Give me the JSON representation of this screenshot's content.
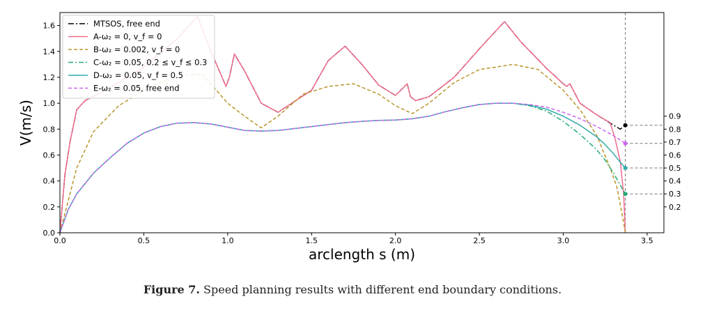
{
  "caption": {
    "label": "Figure 7.",
    "text": " Speed planning results with different end boundary conditions."
  },
  "chart_data": {
    "type": "line",
    "xlabel": "arclength s (m)",
    "ylabel": "V(m/s)",
    "xlim": [
      0.0,
      3.6
    ],
    "ylim": [
      0.0,
      1.7
    ],
    "xticks": [
      "0.0",
      "0.5",
      "1.0",
      "1.5",
      "2.0",
      "2.5",
      "3.0",
      "3.5"
    ],
    "yticks": [
      "0.0",
      "0.2",
      "0.4",
      "0.6",
      "0.8",
      "1.0",
      "1.2",
      "1.4",
      "1.6"
    ],
    "right_ticks": [
      "0.2",
      "0.3",
      "0.4",
      "0.5",
      "0.6",
      "0.7",
      "0.8",
      "0.9"
    ],
    "end_s": 3.37,
    "legend_position": "top-left",
    "end_markers": [
      {
        "y": 0.83,
        "color": "#000000"
      },
      {
        "y": 0.69,
        "color": "#cc66ee"
      },
      {
        "y": 0.5,
        "color": "#33aaaa"
      },
      {
        "y": 0.3,
        "color": "#22aa77"
      }
    ],
    "series": [
      {
        "name": "MTSOS, free end",
        "color": "#000000",
        "dash": "8,3,2,3",
        "x": [
          0,
          0.03,
          0.06,
          0.1,
          0.15,
          0.3,
          0.5,
          0.7,
          0.82,
          0.9,
          0.95,
          0.99,
          1.01,
          1.04,
          1.1,
          1.2,
          1.3,
          1.5,
          1.6,
          1.7,
          1.8,
          1.9,
          2.0,
          2.07,
          2.09,
          2.12,
          2.2,
          2.35,
          2.5,
          2.65,
          2.75,
          2.9,
          3.0,
          3.02,
          3.04,
          3.1,
          3.2,
          3.3,
          3.34,
          3.37
        ],
        "y": [
          0,
          0.45,
          0.7,
          0.95,
          1.02,
          1.12,
          1.28,
          1.5,
          1.67,
          1.4,
          1.25,
          1.13,
          1.2,
          1.38,
          1.25,
          1.0,
          0.93,
          1.1,
          1.33,
          1.44,
          1.3,
          1.14,
          1.06,
          1.15,
          1.05,
          1.02,
          1.05,
          1.2,
          1.42,
          1.63,
          1.47,
          1.27,
          1.15,
          1.13,
          1.15,
          1.0,
          0.91,
          0.83,
          0.8,
          0.83
        ]
      },
      {
        "name": "A-ω₂ = 0, v_f = 0",
        "color": "#f06b8c",
        "dash": "",
        "x": [
          0,
          0.03,
          0.06,
          0.1,
          0.15,
          0.3,
          0.5,
          0.7,
          0.82,
          0.9,
          0.95,
          0.99,
          1.01,
          1.04,
          1.1,
          1.2,
          1.3,
          1.5,
          1.6,
          1.7,
          1.8,
          1.9,
          2.0,
          2.07,
          2.09,
          2.12,
          2.2,
          2.35,
          2.5,
          2.65,
          2.75,
          2.9,
          3.0,
          3.02,
          3.04,
          3.1,
          3.2,
          3.28,
          3.31,
          3.34,
          3.36,
          3.37
        ],
        "y": [
          0,
          0.45,
          0.7,
          0.95,
          1.02,
          1.12,
          1.28,
          1.5,
          1.67,
          1.4,
          1.25,
          1.13,
          1.2,
          1.38,
          1.25,
          1.0,
          0.93,
          1.1,
          1.33,
          1.44,
          1.3,
          1.14,
          1.06,
          1.15,
          1.05,
          1.02,
          1.05,
          1.2,
          1.42,
          1.63,
          1.47,
          1.27,
          1.15,
          1.13,
          1.15,
          1.0,
          0.91,
          0.85,
          0.72,
          0.55,
          0.3,
          0.0
        ]
      },
      {
        "name": "B-ω₂ = 0.002, v_f = 0",
        "color": "#b8952a",
        "dash": "5,3",
        "x": [
          0,
          0.1,
          0.2,
          0.35,
          0.5,
          0.7,
          0.85,
          1.0,
          1.1,
          1.2,
          1.3,
          1.45,
          1.6,
          1.75,
          1.9,
          2.0,
          2.1,
          2.2,
          2.35,
          2.5,
          2.7,
          2.85,
          3.0,
          3.1,
          3.2,
          3.28,
          3.32,
          3.35,
          3.37
        ],
        "y": [
          0,
          0.5,
          0.78,
          0.98,
          1.1,
          1.22,
          1.22,
          1.0,
          0.9,
          0.81,
          0.9,
          1.07,
          1.13,
          1.15,
          1.07,
          0.98,
          0.92,
          1.0,
          1.16,
          1.26,
          1.3,
          1.26,
          1.1,
          0.95,
          0.75,
          0.5,
          0.35,
          0.15,
          0.0
        ]
      },
      {
        "name": "C-ω₂ = 0.05, 0.2 ≤ v_f ≤ 0.3",
        "color": "#22aa77",
        "dash": "7,3,2,3",
        "x": [
          0,
          0.05,
          0.1,
          0.2,
          0.3,
          0.4,
          0.5,
          0.6,
          0.7,
          0.8,
          0.9,
          1.0,
          1.1,
          1.2,
          1.3,
          1.4,
          1.5,
          1.6,
          1.7,
          1.8,
          1.9,
          2.0,
          2.1,
          2.2,
          2.3,
          2.4,
          2.5,
          2.6,
          2.7,
          2.8,
          2.9,
          3.0,
          3.1,
          3.2,
          3.25,
          3.3,
          3.33,
          3.37
        ],
        "y": [
          0,
          0.18,
          0.3,
          0.46,
          0.58,
          0.69,
          0.77,
          0.82,
          0.846,
          0.85,
          0.84,
          0.815,
          0.79,
          0.785,
          0.79,
          0.805,
          0.82,
          0.835,
          0.85,
          0.86,
          0.867,
          0.87,
          0.88,
          0.9,
          0.935,
          0.965,
          0.99,
          1.0,
          1.0,
          0.98,
          0.94,
          0.86,
          0.76,
          0.64,
          0.56,
          0.46,
          0.39,
          0.3
        ]
      },
      {
        "name": "D-ω₂ = 0.05, v_f = 0.5",
        "color": "#33aaaa",
        "dash": "",
        "x": [
          0,
          0.05,
          0.1,
          0.2,
          0.3,
          0.4,
          0.5,
          0.6,
          0.7,
          0.8,
          0.9,
          1.0,
          1.1,
          1.2,
          1.3,
          1.4,
          1.5,
          1.6,
          1.7,
          1.8,
          1.9,
          2.0,
          2.1,
          2.2,
          2.3,
          2.4,
          2.5,
          2.6,
          2.7,
          2.8,
          2.9,
          3.0,
          3.1,
          3.2,
          3.25,
          3.3,
          3.33,
          3.37
        ],
        "y": [
          0,
          0.18,
          0.3,
          0.46,
          0.58,
          0.69,
          0.77,
          0.82,
          0.846,
          0.85,
          0.84,
          0.815,
          0.79,
          0.785,
          0.79,
          0.805,
          0.82,
          0.835,
          0.85,
          0.86,
          0.867,
          0.87,
          0.88,
          0.9,
          0.935,
          0.965,
          0.99,
          1.0,
          1.0,
          0.985,
          0.955,
          0.9,
          0.83,
          0.74,
          0.68,
          0.61,
          0.56,
          0.5
        ]
      },
      {
        "name": "E-ω₂ = 0.05, free end",
        "color": "#cc66ee",
        "dash": "5,3",
        "x": [
          0,
          0.05,
          0.1,
          0.2,
          0.3,
          0.4,
          0.5,
          0.6,
          0.7,
          0.8,
          0.9,
          1.0,
          1.1,
          1.2,
          1.3,
          1.4,
          1.5,
          1.6,
          1.7,
          1.8,
          1.9,
          2.0,
          2.1,
          2.2,
          2.3,
          2.4,
          2.5,
          2.6,
          2.7,
          2.8,
          2.9,
          3.0,
          3.1,
          3.2,
          3.3,
          3.37
        ],
        "y": [
          0,
          0.18,
          0.3,
          0.46,
          0.58,
          0.69,
          0.77,
          0.82,
          0.846,
          0.85,
          0.84,
          0.815,
          0.79,
          0.785,
          0.79,
          0.805,
          0.82,
          0.835,
          0.85,
          0.86,
          0.867,
          0.87,
          0.88,
          0.9,
          0.935,
          0.965,
          0.99,
          1.0,
          1.0,
          0.99,
          0.97,
          0.93,
          0.88,
          0.82,
          0.75,
          0.69
        ]
      }
    ]
  }
}
